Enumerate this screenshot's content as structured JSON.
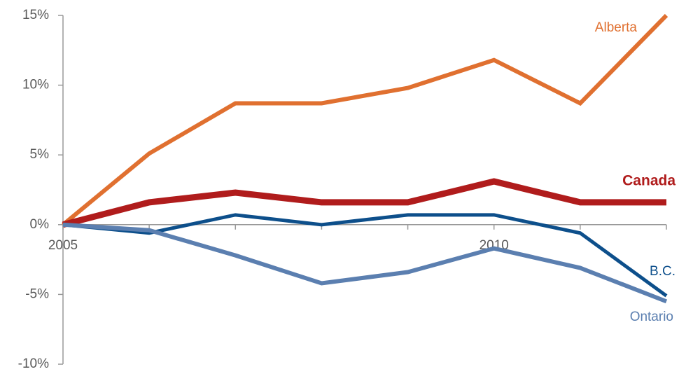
{
  "chart_data": {
    "type": "line",
    "x": [
      2005,
      2006,
      2007,
      2008,
      2009,
      2010,
      2011,
      2012
    ],
    "xlim": [
      2005,
      2012
    ],
    "xticks": [
      2005,
      2010
    ],
    "ylim": [
      -10,
      15
    ],
    "yticks": [
      {
        "value": -10,
        "label": "-10%"
      },
      {
        "value": -5,
        "label": "-5%"
      },
      {
        "value": 0,
        "label": "0%"
      },
      {
        "value": 5,
        "label": "5%"
      },
      {
        "value": 10,
        "label": "10%"
      },
      {
        "value": 15,
        "label": "15%"
      }
    ],
    "series": [
      {
        "name": "Alberta",
        "color": "#e07030",
        "values": [
          0,
          5.1,
          8.7,
          8.7,
          9.8,
          11.8,
          8.7,
          15
        ]
      },
      {
        "name": "Canada",
        "color": "#b01c1c",
        "values": [
          0,
          1.6,
          2.3,
          1.6,
          1.6,
          3.1,
          1.6,
          1.6
        ]
      },
      {
        "name": "B.C.",
        "color": "#0d4f8b",
        "values": [
          0,
          -0.6,
          0.7,
          0,
          0.7,
          0.7,
          -0.6,
          -5.1
        ]
      },
      {
        "name": "Ontario",
        "color": "#5b7fb0",
        "values": [
          0,
          -0.4,
          -2.2,
          -4.2,
          -3.4,
          -1.7,
          -3.1,
          -5.5
        ]
      }
    ]
  }
}
